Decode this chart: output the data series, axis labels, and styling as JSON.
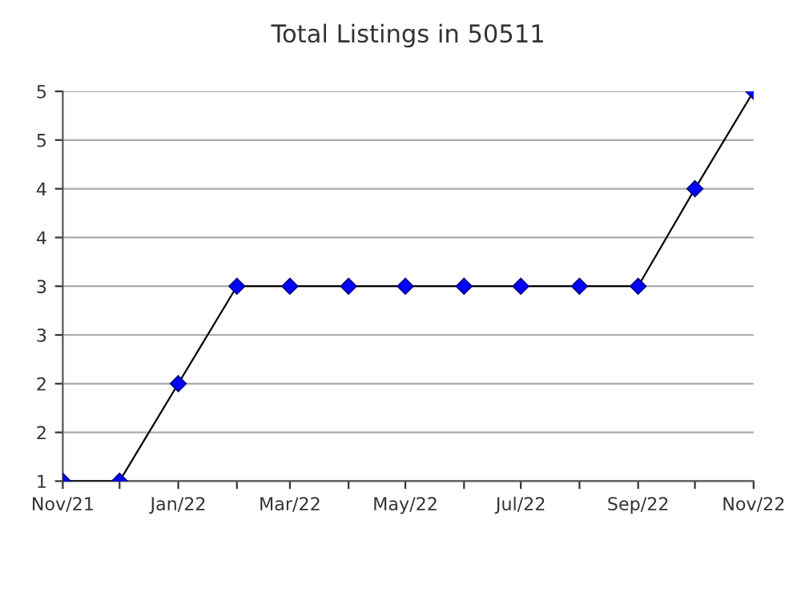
{
  "chart_data": {
    "type": "line",
    "title": "Total Listings in 50511",
    "x": [
      "2021-11",
      "2021-12",
      "2022-01",
      "2022-02",
      "2022-03",
      "2022-04",
      "2022-05",
      "2022-06",
      "2022-07",
      "2022-08",
      "2022-09",
      "2022-10",
      "2022-11"
    ],
    "series": [
      {
        "color": "#0000ff",
        "values": [
          1,
          1,
          2,
          3,
          3,
          3,
          3,
          3,
          3,
          3,
          3,
          4,
          5
        ]
      }
    ],
    "xlim": [
      "2021-11",
      "2022-11"
    ],
    "xticks": [
      {
        "value": "2021-11",
        "label": "Nov/21"
      },
      {
        "value": "2021-12",
        "label": null
      },
      {
        "value": "2022-01",
        "label": "Jan/22"
      },
      {
        "value": "2022-02",
        "label": null
      },
      {
        "value": "2022-03",
        "label": "Mar/22"
      },
      {
        "value": "2022-04",
        "label": null
      },
      {
        "value": "2022-05",
        "label": "May/22"
      },
      {
        "value": "2022-06",
        "label": null
      },
      {
        "value": "2022-07",
        "label": "Jul/22"
      },
      {
        "value": "2022-08",
        "label": null
      },
      {
        "value": "2022-09",
        "label": "Sep/22"
      },
      {
        "value": "2022-10",
        "label": null
      },
      {
        "value": "2022-11",
        "label": "Nov/22"
      }
    ],
    "ylim": [
      1,
      5
    ],
    "yticks": [
      1,
      {
        "value": 1.5,
        "label": "2"
      },
      2,
      {
        "value": 2.5,
        "label": "3"
      },
      3,
      {
        "value": 3.5,
        "label": "4"
      },
      4,
      {
        "value": 4.5,
        "label": "5"
      },
      5
    ],
    "grid": "y",
    "marker": "diamond",
    "line_style": "solid"
  }
}
